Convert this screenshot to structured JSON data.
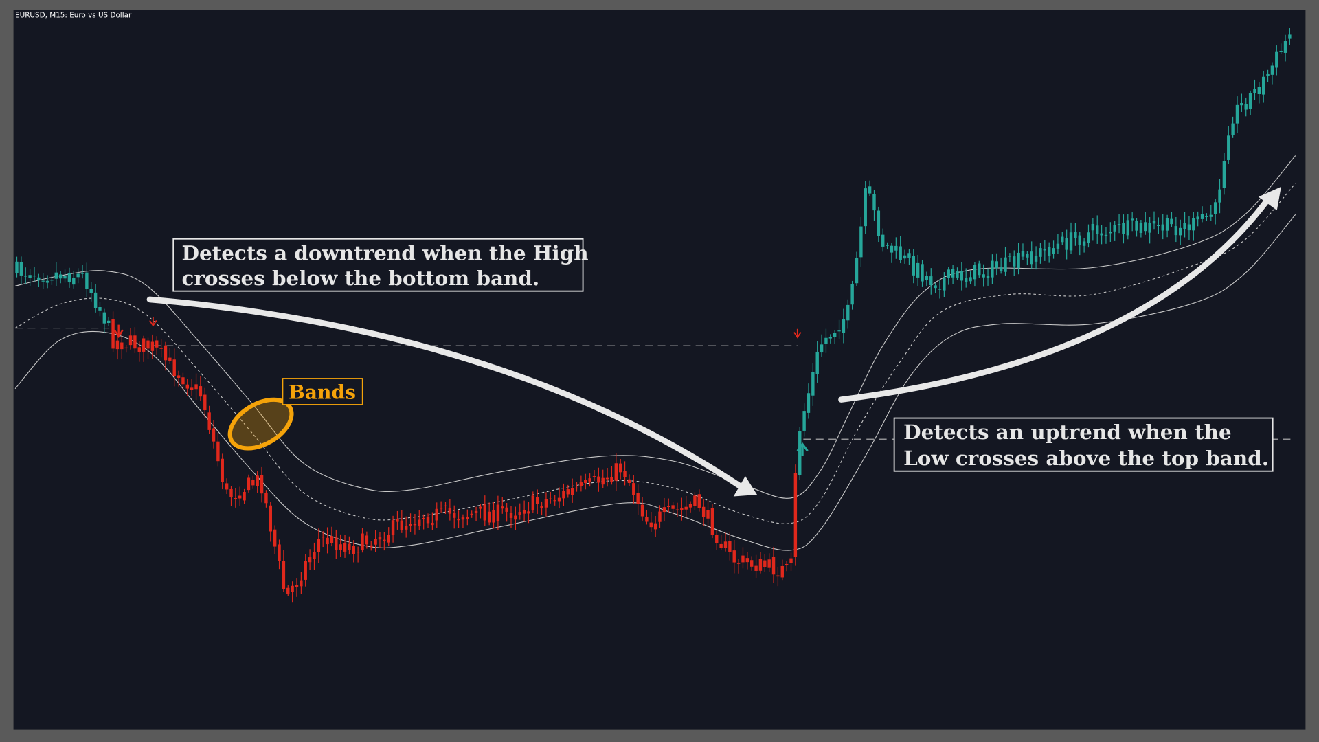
{
  "header": {
    "symbol": "EURUSD, M15:  Euro vs US Dollar"
  },
  "annotations": {
    "downtrend": {
      "lines": [
        "Detects a downtrend when the High",
        "crosses below the bottom band."
      ]
    },
    "uptrend": {
      "lines": [
        "Detects an uptrend when the",
        "Low crosses above the top band."
      ]
    },
    "bands": {
      "label": "Bands"
    }
  }
}
